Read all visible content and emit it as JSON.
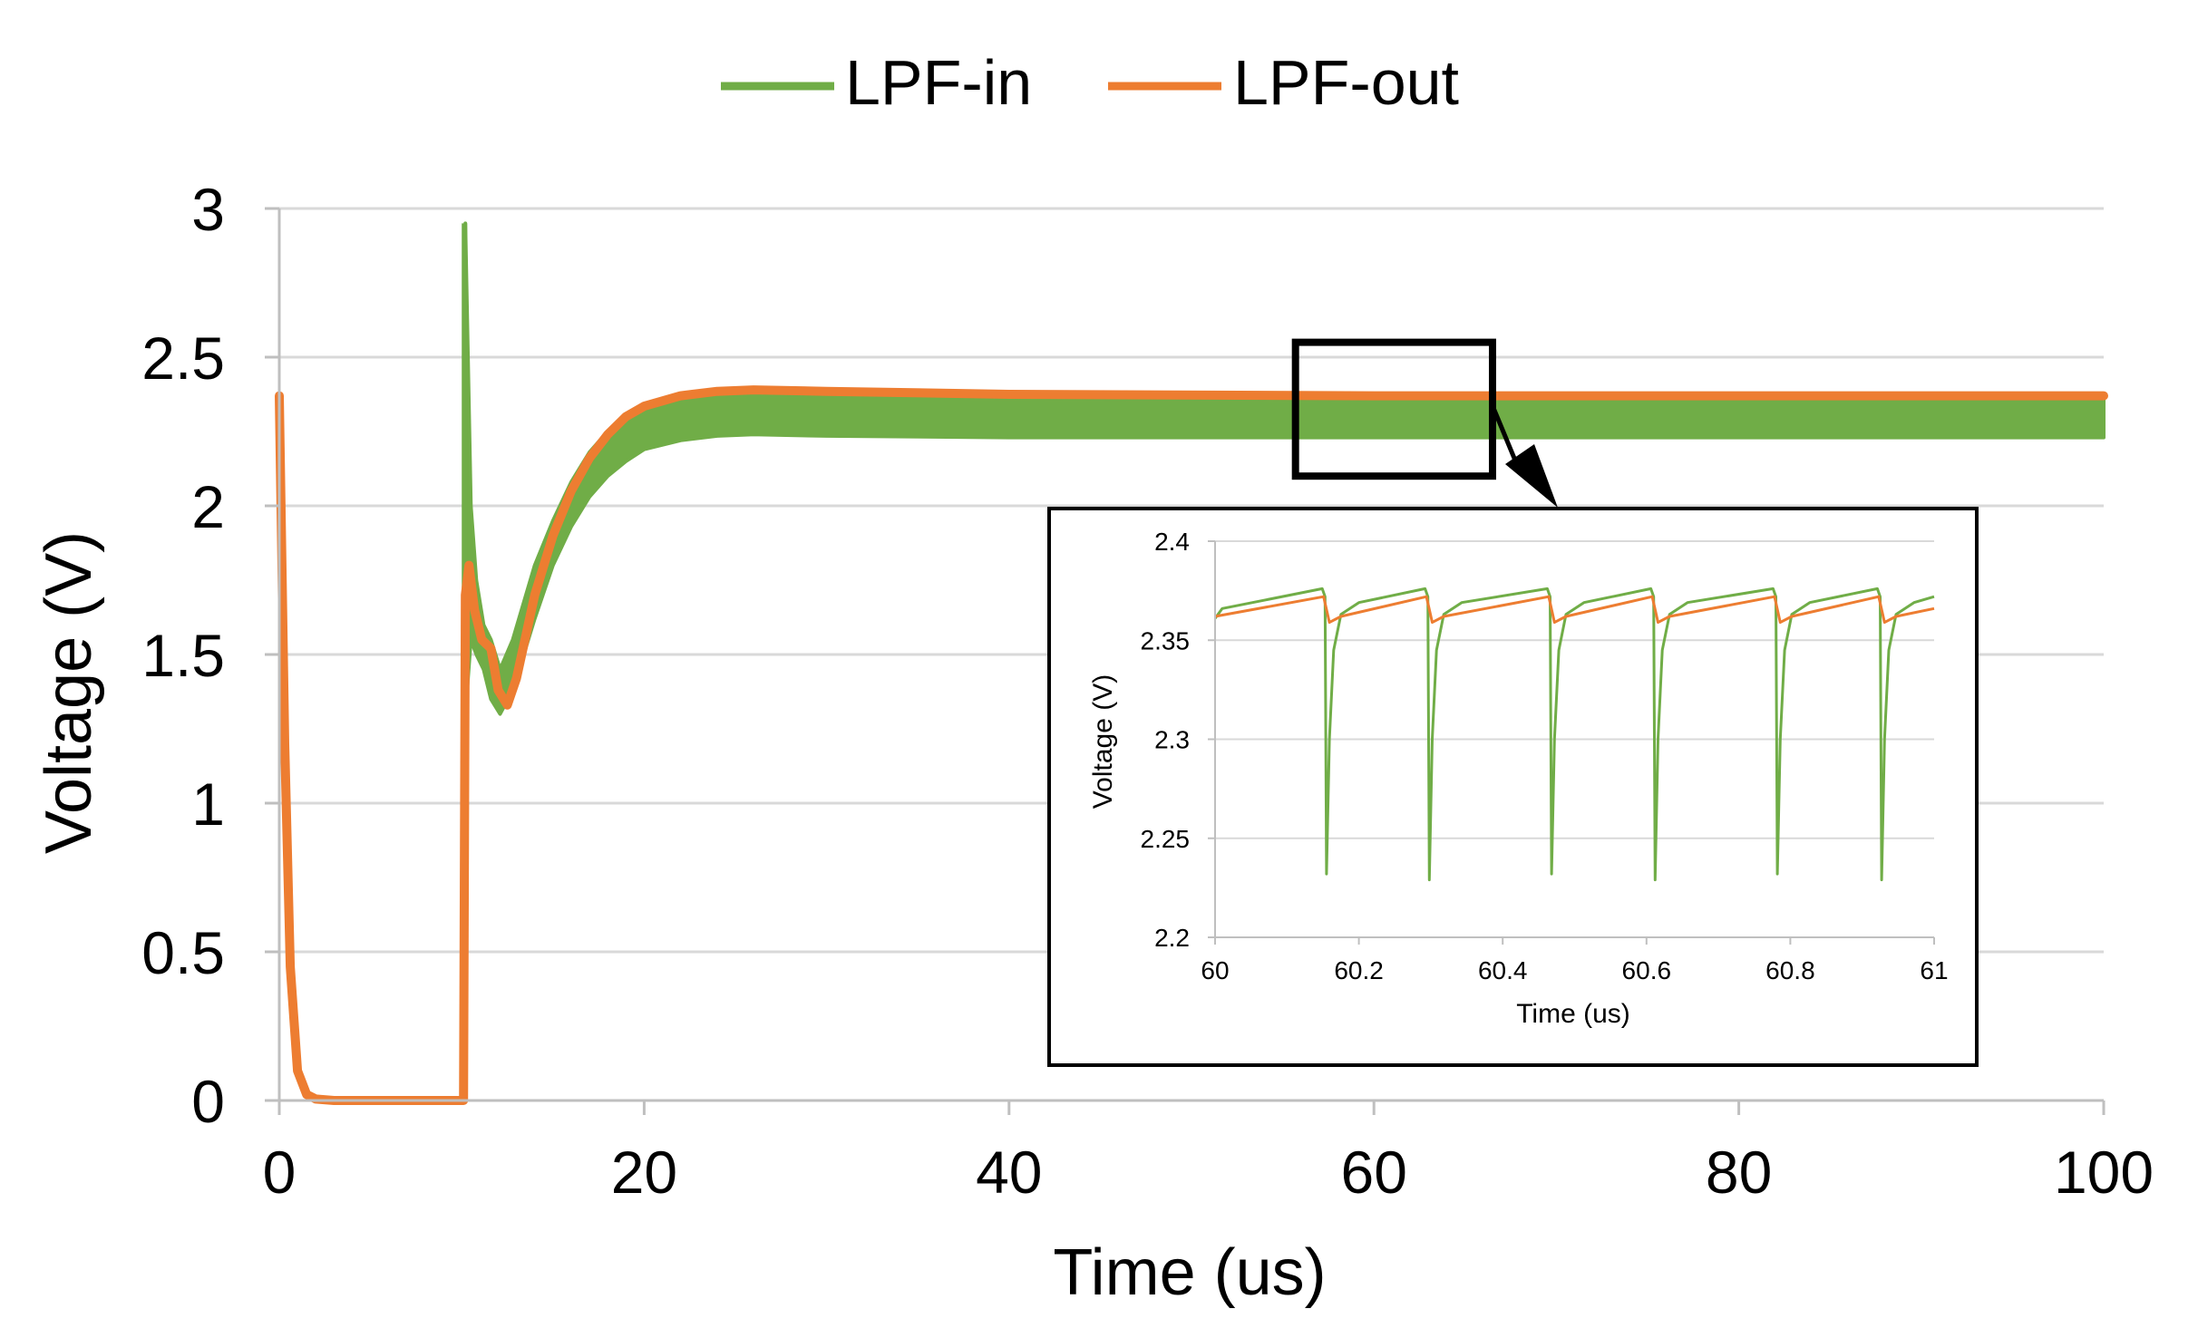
{
  "colors": {
    "series_in": "#70AD47",
    "series_out": "#ED7D31",
    "grid": "#d9d9d9",
    "axis": "#bfbfbf",
    "text": "#000000"
  },
  "legend": {
    "placement": "top-center"
  },
  "chart_data": [
    {
      "id": "main",
      "type": "line",
      "title": "",
      "xlabel": "Time (us)",
      "ylabel": "Voltage (V)",
      "xlim": [
        0,
        100
      ],
      "ylim": [
        0,
        3
      ],
      "xticks": [
        0,
        20,
        40,
        60,
        80,
        100
      ],
      "xtick_labels": [
        "0",
        "20",
        "40",
        "60",
        "80",
        "100"
      ],
      "yticks": [
        0,
        0.5,
        1,
        1.5,
        2,
        2.5,
        3
      ],
      "ytick_labels": [
        "0",
        "0.5",
        "1",
        "1.5",
        "2",
        "2.5",
        "3"
      ],
      "grid": true,
      "series": [
        {
          "name": "LPF-in",
          "color": "#70AD47",
          "band_note": "ripple envelope",
          "upper": [
            [
              10.1,
              0.0
            ],
            [
              10.2,
              2.95
            ],
            [
              10.5,
              2.0
            ],
            [
              10.8,
              1.75
            ],
            [
              11.2,
              1.6
            ],
            [
              11.6,
              1.55
            ],
            [
              12.1,
              1.45
            ],
            [
              12.8,
              1.55
            ],
            [
              14,
              1.8
            ],
            [
              15,
              1.95
            ],
            [
              16,
              2.08
            ],
            [
              17,
              2.18
            ],
            [
              18,
              2.25
            ],
            [
              19,
              2.3
            ],
            [
              20,
              2.34
            ],
            [
              22,
              2.37
            ],
            [
              24,
              2.38
            ],
            [
              26,
              2.385
            ],
            [
              30,
              2.38
            ],
            [
              40,
              2.375
            ],
            [
              60,
              2.375
            ],
            [
              80,
              2.375
            ],
            [
              100,
              2.375
            ]
          ],
          "lower": [
            [
              10.1,
              0.0
            ],
            [
              10.2,
              1.3
            ],
            [
              10.5,
              1.55
            ],
            [
              10.8,
              1.5
            ],
            [
              11.2,
              1.45
            ],
            [
              11.6,
              1.35
            ],
            [
              12.1,
              1.3
            ],
            [
              12.8,
              1.38
            ],
            [
              14,
              1.62
            ],
            [
              15,
              1.8
            ],
            [
              16,
              1.93
            ],
            [
              17,
              2.03
            ],
            [
              18,
              2.1
            ],
            [
              19,
              2.15
            ],
            [
              20,
              2.19
            ],
            [
              22,
              2.22
            ],
            [
              24,
              2.235
            ],
            [
              26,
              2.24
            ],
            [
              30,
              2.235
            ],
            [
              40,
              2.23
            ],
            [
              60,
              2.23
            ],
            [
              80,
              2.23
            ],
            [
              100,
              2.23
            ]
          ]
        },
        {
          "name": "LPF-out",
          "color": "#ED7D31",
          "points": [
            [
              0,
              2.37
            ],
            [
              0.3,
              1.2
            ],
            [
              0.6,
              0.45
            ],
            [
              1,
              0.1
            ],
            [
              1.5,
              0.02
            ],
            [
              2,
              0.005
            ],
            [
              3,
              0
            ],
            [
              10,
              0
            ],
            [
              10.1,
              0
            ],
            [
              10.2,
              1.7
            ],
            [
              10.4,
              1.8
            ],
            [
              10.7,
              1.65
            ],
            [
              11.1,
              1.55
            ],
            [
              11.6,
              1.52
            ],
            [
              12,
              1.38
            ],
            [
              12.5,
              1.33
            ],
            [
              13,
              1.42
            ],
            [
              14,
              1.7
            ],
            [
              15,
              1.9
            ],
            [
              16,
              2.05
            ],
            [
              17,
              2.16
            ],
            [
              18,
              2.24
            ],
            [
              19,
              2.3
            ],
            [
              20,
              2.335
            ],
            [
              22,
              2.37
            ],
            [
              24,
              2.385
            ],
            [
              26,
              2.39
            ],
            [
              30,
              2.385
            ],
            [
              40,
              2.375
            ],
            [
              60,
              2.37
            ],
            [
              80,
              2.37
            ],
            [
              100,
              2.37
            ]
          ]
        }
      ],
      "zoom_box": {
        "x": [
          55.7,
          66.5
        ],
        "y": [
          2.1,
          2.55
        ]
      }
    },
    {
      "id": "inset",
      "type": "line",
      "title": "",
      "xlabel": "Time (us)",
      "ylabel": "Voltage (V)",
      "xlim": [
        60,
        61
      ],
      "ylim": [
        2.2,
        2.4
      ],
      "xticks": [
        60,
        60.2,
        60.4,
        60.6,
        60.8,
        61
      ],
      "xtick_labels": [
        "60",
        "60.2",
        "60.4",
        "60.6",
        "60.8",
        "61"
      ],
      "yticks": [
        2.2,
        2.25,
        2.3,
        2.35,
        2.4
      ],
      "ytick_labels": [
        "2.2",
        "2.25",
        "2.3",
        "2.35",
        "2.4"
      ],
      "grid": true,
      "series": [
        {
          "name": "LPF-in",
          "color": "#70AD47",
          "pulse_times": [
            60.155,
            60.298,
            60.468,
            60.612,
            60.782,
            60.927
          ],
          "min_values": [
            2.232,
            2.229,
            2.232,
            2.229,
            2.232,
            2.229
          ],
          "baseline_low": 2.363,
          "baseline_high": 2.376
        },
        {
          "name": "LPF-out",
          "color": "#ED7D31",
          "pulse_times": [
            60.155,
            60.298,
            60.468,
            60.612,
            60.782,
            60.927
          ],
          "baseline_low": 2.362,
          "baseline_high": 2.372,
          "dip": 2.363
        }
      ]
    }
  ]
}
